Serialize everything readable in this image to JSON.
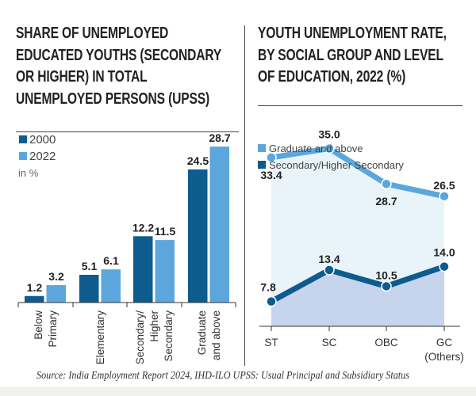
{
  "colors": {
    "dark": "#0e5b8e",
    "light": "#5ba7dd",
    "light_area": "#e9f4fa",
    "dark_area": "#c6d4ec"
  },
  "chart_data": [
    {
      "type": "bar",
      "title_lines": [
        "SHARE OF UNEMPLOYED",
        "EDUCATED YOUTHS (SECONDARY",
        "OR HIGHER) IN TOTAL",
        "UNEMPLOYED PERSONS (UPSS)"
      ],
      "unit": "in %",
      "categories": [
        [
          "Below",
          "Primary"
        ],
        [
          "Elementary"
        ],
        [
          "Secondary/",
          "Higher",
          "Secondary"
        ],
        [
          "Graduate",
          "and above"
        ]
      ],
      "series": [
        {
          "name": "2000",
          "values": [
            1.2,
            5.1,
            12.2,
            24.5
          ]
        },
        {
          "name": "2022",
          "values": [
            3.2,
            6.1,
            11.5,
            28.7
          ]
        }
      ],
      "value_labels": [
        [
          "1.2",
          "5.1",
          "12.2",
          "24.5"
        ],
        [
          "3.2",
          "6.1",
          "11.5",
          "28.7"
        ]
      ],
      "legend": "top-left",
      "ylim": [
        0,
        30
      ],
      "grid": false
    },
    {
      "type": "line",
      "title_lines": [
        "YOUTH UNEMPLOYMENT RATE,",
        "BY SOCIAL GROUP AND LEVEL",
        "OF EDUCATION, 2022 (%)"
      ],
      "categories": [
        [
          "ST"
        ],
        [
          "SC"
        ],
        [
          "OBC"
        ],
        [
          "GC",
          "(Others)"
        ]
      ],
      "series": [
        {
          "name": "Graduate and above",
          "values": [
            33.4,
            35.0,
            28.7,
            26.5
          ],
          "labels": [
            "33.4",
            "35.0",
            "28.7",
            "26.5"
          ]
        },
        {
          "name": "Secondary/Higher Secondary",
          "values": [
            7.8,
            13.4,
            10.5,
            14.0
          ],
          "labels": [
            "7.8",
            "13.4",
            "10.5",
            "14.0"
          ]
        }
      ],
      "legend": "top-left",
      "area_fill": true,
      "grid": false
    }
  ],
  "source": "Source: India Employment Report 2024, IHD-ILO UPSS: Usual Principal and Subsidiary Status"
}
